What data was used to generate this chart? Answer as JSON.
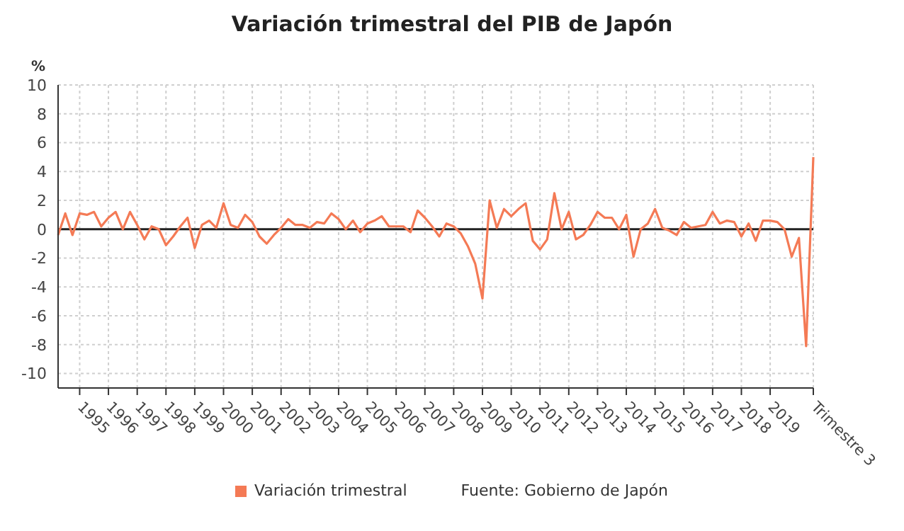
{
  "chart_data": {
    "type": "line",
    "title": "Variación trimestral del PIB de Japón",
    "ylabel": "%",
    "categories": [
      null,
      null,
      null,
      "1995",
      null,
      null,
      null,
      "1996",
      null,
      null,
      null,
      "1997",
      null,
      null,
      null,
      "1998",
      null,
      null,
      null,
      "1999",
      null,
      null,
      null,
      "2000",
      null,
      null,
      null,
      "2001",
      null,
      null,
      null,
      "2002",
      null,
      null,
      null,
      "2003",
      null,
      null,
      null,
      "2004",
      null,
      null,
      null,
      "2005",
      null,
      null,
      null,
      "2006",
      null,
      null,
      null,
      "2007",
      null,
      null,
      null,
      "2008",
      null,
      null,
      null,
      "2009",
      null,
      null,
      null,
      "2010",
      null,
      null,
      null,
      "2011",
      null,
      null,
      null,
      "2012",
      null,
      null,
      null,
      "2013",
      null,
      null,
      null,
      "2014",
      null,
      null,
      null,
      "2015",
      null,
      null,
      null,
      "2016",
      null,
      null,
      null,
      "2017",
      null,
      null,
      null,
      "2018",
      null,
      null,
      null,
      "2019",
      null,
      null,
      null,
      null,
      null,
      "Trimestre 3"
    ],
    "series": [
      {
        "name": "Variación trimestral",
        "color": "#f47a55",
        "values": [
          -0.4,
          1.1,
          -0.4,
          1.1,
          1.0,
          1.2,
          0.2,
          0.8,
          1.2,
          0.0,
          1.2,
          0.3,
          -0.7,
          0.2,
          0.0,
          -1.1,
          -0.5,
          0.2,
          0.8,
          -1.3,
          0.3,
          0.6,
          0.1,
          1.8,
          0.3,
          0.1,
          1.0,
          0.5,
          -0.5,
          -1.0,
          -0.4,
          0.1,
          0.7,
          0.3,
          0.3,
          0.1,
          0.5,
          0.4,
          1.1,
          0.7,
          0.0,
          0.6,
          -0.2,
          0.4,
          0.6,
          0.9,
          0.2,
          0.2,
          0.2,
          -0.2,
          1.3,
          0.8,
          0.2,
          -0.5,
          0.4,
          0.2,
          -0.3,
          -1.2,
          -2.4,
          -4.8,
          2.0,
          0.1,
          1.4,
          0.9,
          1.4,
          1.8,
          -0.8,
          -1.4,
          -0.7,
          2.5,
          0.0,
          1.2,
          -0.7,
          -0.4,
          0.3,
          1.2,
          0.8,
          0.8,
          0.0,
          1.0,
          -1.9,
          0.0,
          0.4,
          1.4,
          0.1,
          -0.1,
          -0.4,
          0.5,
          0.1,
          0.2,
          0.3,
          1.2,
          0.4,
          0.6,
          0.5,
          -0.5,
          0.4,
          -0.8,
          0.6,
          0.6,
          0.5,
          0.0,
          -1.9,
          -0.6,
          -8.1,
          5.0
        ]
      }
    ],
    "ylim": [
      -11,
      10
    ],
    "yticks": [
      -10,
      -8,
      -6,
      -4,
      -2,
      0,
      2,
      4,
      6,
      8,
      10
    ],
    "ref_lines": [
      {
        "axis": "y",
        "value": 0,
        "color": "#222222"
      }
    ],
    "grid": true,
    "legend": "bottom",
    "marker": "none",
    "line_style": "solid",
    "annotations": [
      "Fuente: Gobierno de Japón"
    ]
  }
}
